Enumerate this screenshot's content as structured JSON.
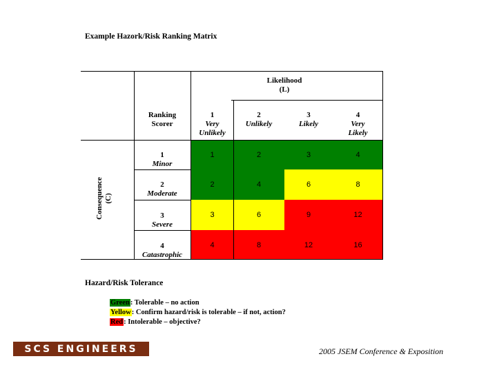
{
  "title": "Example Hazork/Risk  Ranking Matrix",
  "matrix": {
    "likelihood_header": [
      "Likelihood",
      "(L)"
    ],
    "scorer_label": [
      "Ranking",
      "Scorer"
    ],
    "columns": [
      {
        "num": "1",
        "label": "Very",
        "label2": "Unlikely"
      },
      {
        "num": "2",
        "label": "Unlikely",
        "label2": ""
      },
      {
        "num": "3",
        "label": "Likely",
        "label2": ""
      },
      {
        "num": "4",
        "label": "Very",
        "label2": "Likely"
      }
    ],
    "consequence_label": [
      "Consequence",
      "(C)"
    ],
    "rows": [
      {
        "num": "1",
        "label": "Minor",
        "cells": [
          "1",
          "2",
          "3",
          "4"
        ],
        "colors": [
          "#008000",
          "#008000",
          "#008000",
          "#008000"
        ]
      },
      {
        "num": "2",
        "label": "Moderate",
        "cells": [
          "2",
          "4",
          "6",
          "8"
        ],
        "colors": [
          "#008000",
          "#008000",
          "#ffff00",
          "#ffff00"
        ]
      },
      {
        "num": "3",
        "label": "Severe",
        "cells": [
          "3",
          "6",
          "9",
          "12"
        ],
        "colors": [
          "#ffff00",
          "#ffff00",
          "#ff0000",
          "#ff0000"
        ]
      },
      {
        "num": "4",
        "label": "Catastrophic",
        "cells": [
          "4",
          "8",
          "12",
          "16"
        ],
        "colors": [
          "#ff0000",
          "#ff0000",
          "#ff0000",
          "#ff0000"
        ]
      }
    ]
  },
  "tolerance": {
    "title": "Hazard/Risk Tolerance",
    "items": [
      {
        "color_word": "Green",
        "text": ":  Tolerable – no action",
        "color": "#008000"
      },
      {
        "color_word": "Yellow",
        "text": ":  Confirm hazard/risk is tolerable – if not, action?",
        "color": "#ffff00"
      },
      {
        "color_word": "Red",
        "text": ":  Intolerable – objective?",
        "color": "#ff0000"
      }
    ]
  },
  "logo_text": "SCS ENGINEERS",
  "footer": "2005 JSEM Conference & Exposition"
}
